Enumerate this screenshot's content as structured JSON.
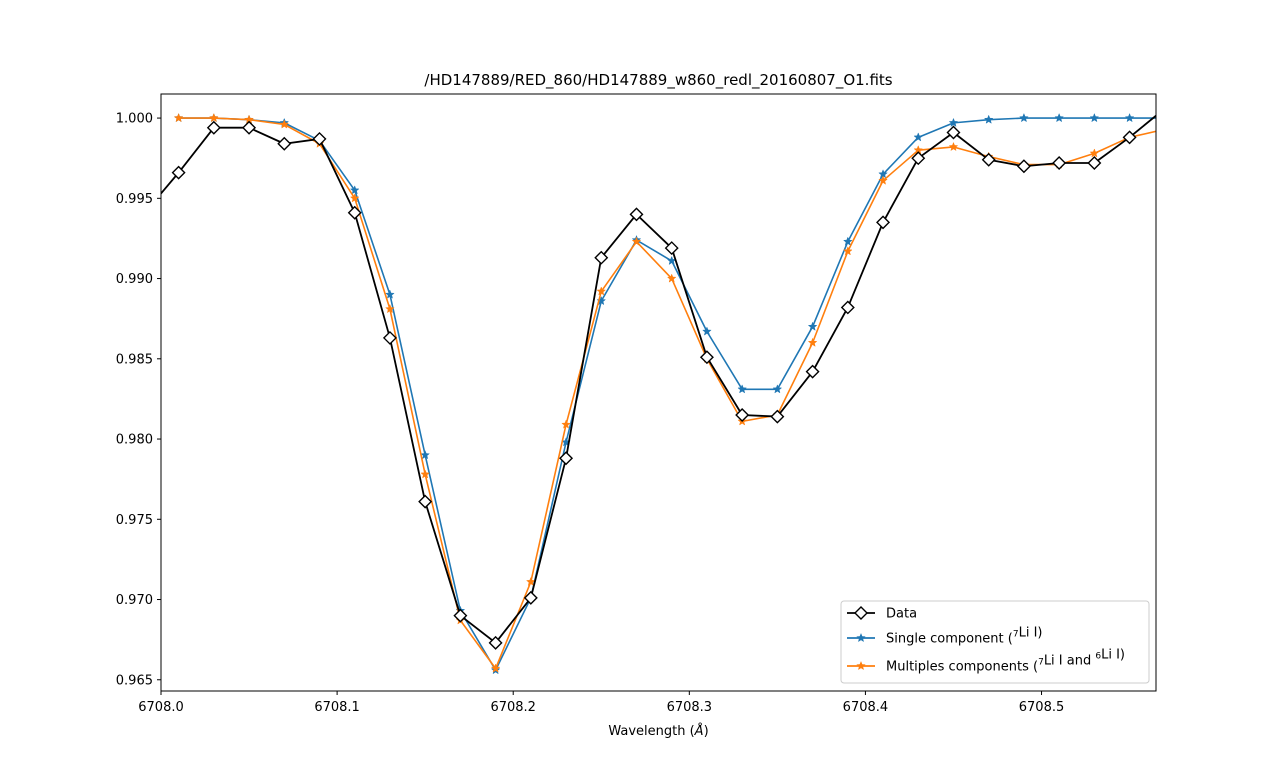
{
  "chart_data": {
    "type": "line",
    "title": "/HD147889/RED_860/HD147889_w860_redl_20160807_O1.fits",
    "xlabel": "Wavelength (",
    "xlabel_unit": "Å",
    "xlabel_close": ")",
    "ylabel": "",
    "xlim": [
      6708.0,
      6708.565
    ],
    "ylim": [
      0.9643,
      1.0015
    ],
    "xticks": [
      6708.0,
      6708.1,
      6708.2,
      6708.3,
      6708.4,
      6708.5
    ],
    "xtick_labels": [
      "6708.0",
      "6708.1",
      "6708.2",
      "6708.3",
      "6708.4",
      "6708.5"
    ],
    "yticks": [
      0.965,
      0.97,
      0.975,
      0.98,
      0.985,
      0.99,
      0.995,
      1.0
    ],
    "ytick_labels": [
      "0.965",
      "0.970",
      "0.975",
      "0.980",
      "0.985",
      "0.990",
      "0.995",
      "1.000"
    ],
    "grid": false,
    "legend_position": "lower-right",
    "series": [
      {
        "name": "Data",
        "color": "#000000",
        "marker": "diamond",
        "x": [
          6707.99,
          6708.01,
          6708.03,
          6708.05,
          6708.07,
          6708.09,
          6708.11,
          6708.13,
          6708.15,
          6708.17,
          6708.19,
          6708.21,
          6708.23,
          6708.25,
          6708.27,
          6708.29,
          6708.31,
          6708.33,
          6708.35,
          6708.37,
          6708.39,
          6708.41,
          6708.43,
          6708.45,
          6708.47,
          6708.49,
          6708.51,
          6708.53,
          6708.55,
          6708.57
        ],
        "y": [
          0.994,
          0.9966,
          0.9994,
          0.9994,
          0.9984,
          0.9987,
          0.9941,
          0.9863,
          0.9761,
          0.969,
          0.9673,
          0.9701,
          0.9788,
          0.9913,
          0.994,
          0.9919,
          0.9851,
          0.9815,
          0.9814,
          0.9842,
          0.9882,
          0.9935,
          0.9975,
          0.9991,
          0.9974,
          0.997,
          0.9972,
          0.9972,
          0.9988,
          1.0006
        ],
        "markers_from": 1,
        "markers_to": 28
      },
      {
        "name": "Single component",
        "color": "#1f77b4",
        "marker": "star",
        "x": [
          6708.01,
          6708.03,
          6708.05,
          6708.07,
          6708.09,
          6708.11,
          6708.13,
          6708.15,
          6708.17,
          6708.19,
          6708.21,
          6708.23,
          6708.25,
          6708.27,
          6708.29,
          6708.31,
          6708.33,
          6708.35,
          6708.37,
          6708.39,
          6708.41,
          6708.43,
          6708.45,
          6708.47,
          6708.49,
          6708.51,
          6708.53,
          6708.55,
          6708.57
        ],
        "y": [
          1.0,
          1.0,
          0.9999,
          0.9997,
          0.9986,
          0.9955,
          0.989,
          0.979,
          0.9693,
          0.9656,
          0.9701,
          0.9798,
          0.9886,
          0.9924,
          0.9911,
          0.9867,
          0.9831,
          0.9831,
          0.987,
          0.9923,
          0.9965,
          0.9988,
          0.9997,
          0.9999,
          1.0,
          1.0,
          1.0,
          1.0,
          1.0
        ],
        "markers_from": 0,
        "markers_to": 27
      },
      {
        "name": "Multiples components",
        "color": "#ff7f0e",
        "marker": "star",
        "x": [
          6708.01,
          6708.03,
          6708.05,
          6708.07,
          6708.09,
          6708.11,
          6708.13,
          6708.15,
          6708.17,
          6708.19,
          6708.21,
          6708.23,
          6708.25,
          6708.27,
          6708.29,
          6708.31,
          6708.33,
          6708.35,
          6708.37,
          6708.39,
          6708.41,
          6708.43,
          6708.45,
          6708.47,
          6708.49,
          6708.51,
          6708.53,
          6708.55,
          6708.57
        ],
        "y": [
          1.0,
          1.0,
          0.9999,
          0.9996,
          0.9984,
          0.995,
          0.9881,
          0.9778,
          0.9687,
          0.9657,
          0.9711,
          0.9809,
          0.9892,
          0.9923,
          0.99,
          0.985,
          0.9811,
          0.9815,
          0.986,
          0.9917,
          0.9961,
          0.998,
          0.9982,
          0.9976,
          0.9971,
          0.9971,
          0.9978,
          0.9988,
          0.9993
        ],
        "markers_from": 0,
        "markers_to": 27
      }
    ],
    "legend": [
      {
        "label_pre": "Data",
        "sup1": "",
        "mid": "",
        "sup2": "",
        "post": ""
      },
      {
        "label_pre": "Single component (",
        "sup1": "7",
        "mid": "Li I)",
        "sup2": "",
        "post": ""
      },
      {
        "label_pre": "Multiples components (",
        "sup1": "7",
        "mid": "Li I and ",
        "sup2": "6",
        "post": "Li I)"
      }
    ]
  }
}
